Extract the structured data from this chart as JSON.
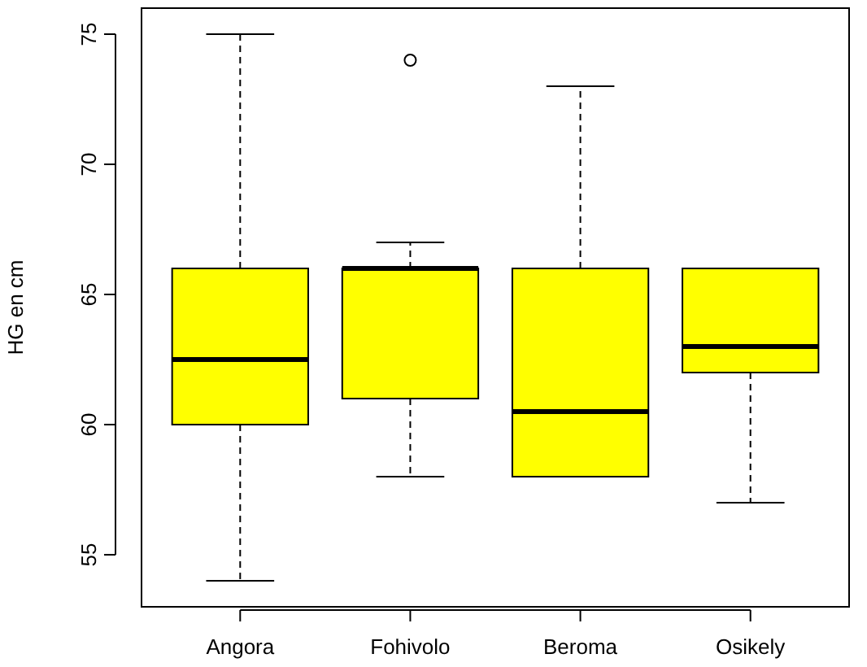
{
  "chart_data": {
    "type": "box",
    "ylabel": "HG en cm",
    "categories": [
      "Angora",
      "Fohivolo",
      "Beroma",
      "Osikely"
    ],
    "color": "#ffff00",
    "boxes": [
      {
        "low": 54,
        "q1": 60,
        "median": 62.5,
        "q3": 66,
        "high": 75
      },
      {
        "low": 58,
        "q1": 61,
        "median": 66,
        "q3": 66,
        "high": 67,
        "outliers": [
          74
        ]
      },
      {
        "low": 58,
        "q1": 58,
        "median": 60.5,
        "q3": 66,
        "high": 73
      },
      {
        "low": 57,
        "q1": 62,
        "median": 63,
        "q3": 66,
        "high": 66
      }
    ],
    "ylim": [
      53,
      76
    ],
    "yticks": [
      55,
      60,
      65,
      70,
      75
    ],
    "grid": false
  }
}
